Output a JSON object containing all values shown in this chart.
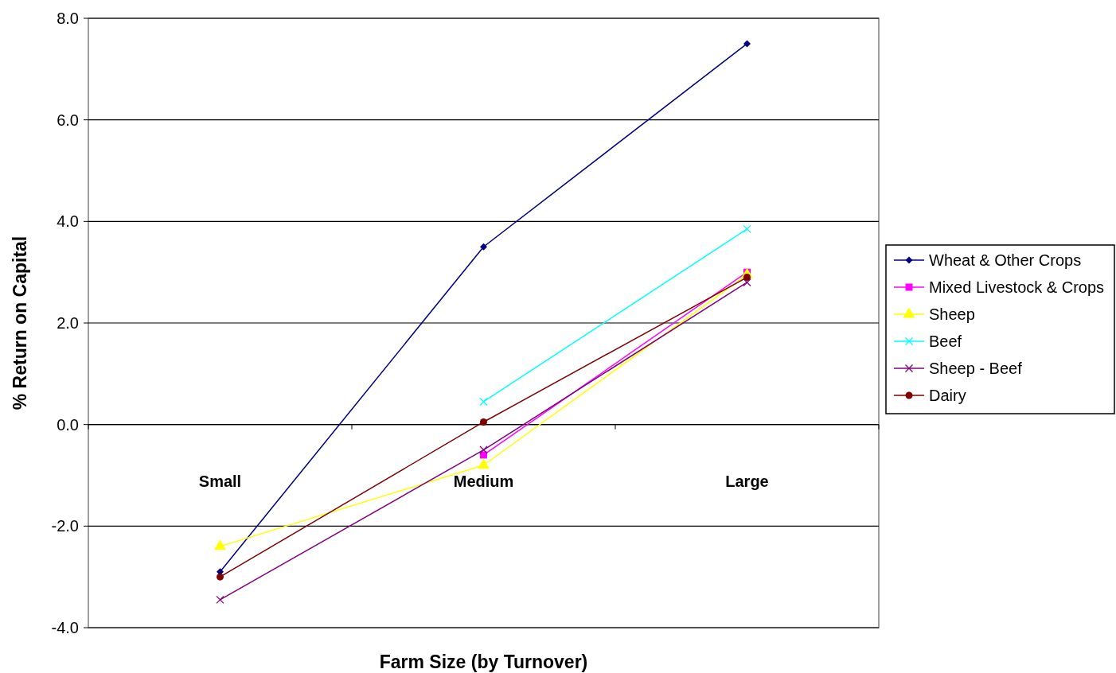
{
  "chart_data": {
    "type": "line",
    "xlabel": "Farm Size (by Turnover)",
    "ylabel": "% Return on Capital",
    "categories": [
      "Small",
      "Medium",
      "Large"
    ],
    "ylim": [
      -4,
      8
    ],
    "yticks": [
      {
        "value": -4,
        "label": "-4.0"
      },
      {
        "value": -2,
        "label": "-2.0"
      },
      {
        "value": 0,
        "label": "0.0"
      },
      {
        "value": 2,
        "label": "2.0"
      },
      {
        "value": 4,
        "label": "4.0"
      },
      {
        "value": 6,
        "label": "6.0"
      },
      {
        "value": 8,
        "label": "8.0"
      }
    ],
    "grid": "y",
    "legend": "right",
    "series": [
      {
        "name": "Wheat & Other Crops",
        "color": "#000080",
        "marker": "diamond",
        "values": [
          -2.9,
          3.5,
          7.5
        ]
      },
      {
        "name": "Mixed Livestock & Crops",
        "color": "#ff00ff",
        "marker": "square",
        "values": [
          null,
          -0.6,
          3.0
        ]
      },
      {
        "name": "Sheep",
        "color": "#ffff00",
        "marker": "triangle",
        "values": [
          -2.4,
          -0.8,
          2.95
        ]
      },
      {
        "name": "Beef",
        "color": "#00ffff",
        "marker": "cross",
        "values": [
          null,
          0.45,
          3.85
        ]
      },
      {
        "name": "Sheep - Beef",
        "color": "#800080",
        "marker": "cross",
        "values": [
          -3.45,
          -0.5,
          2.8
        ]
      },
      {
        "name": "Dairy",
        "color": "#800000",
        "marker": "circle",
        "values": [
          -3.0,
          0.05,
          2.9
        ]
      }
    ]
  }
}
